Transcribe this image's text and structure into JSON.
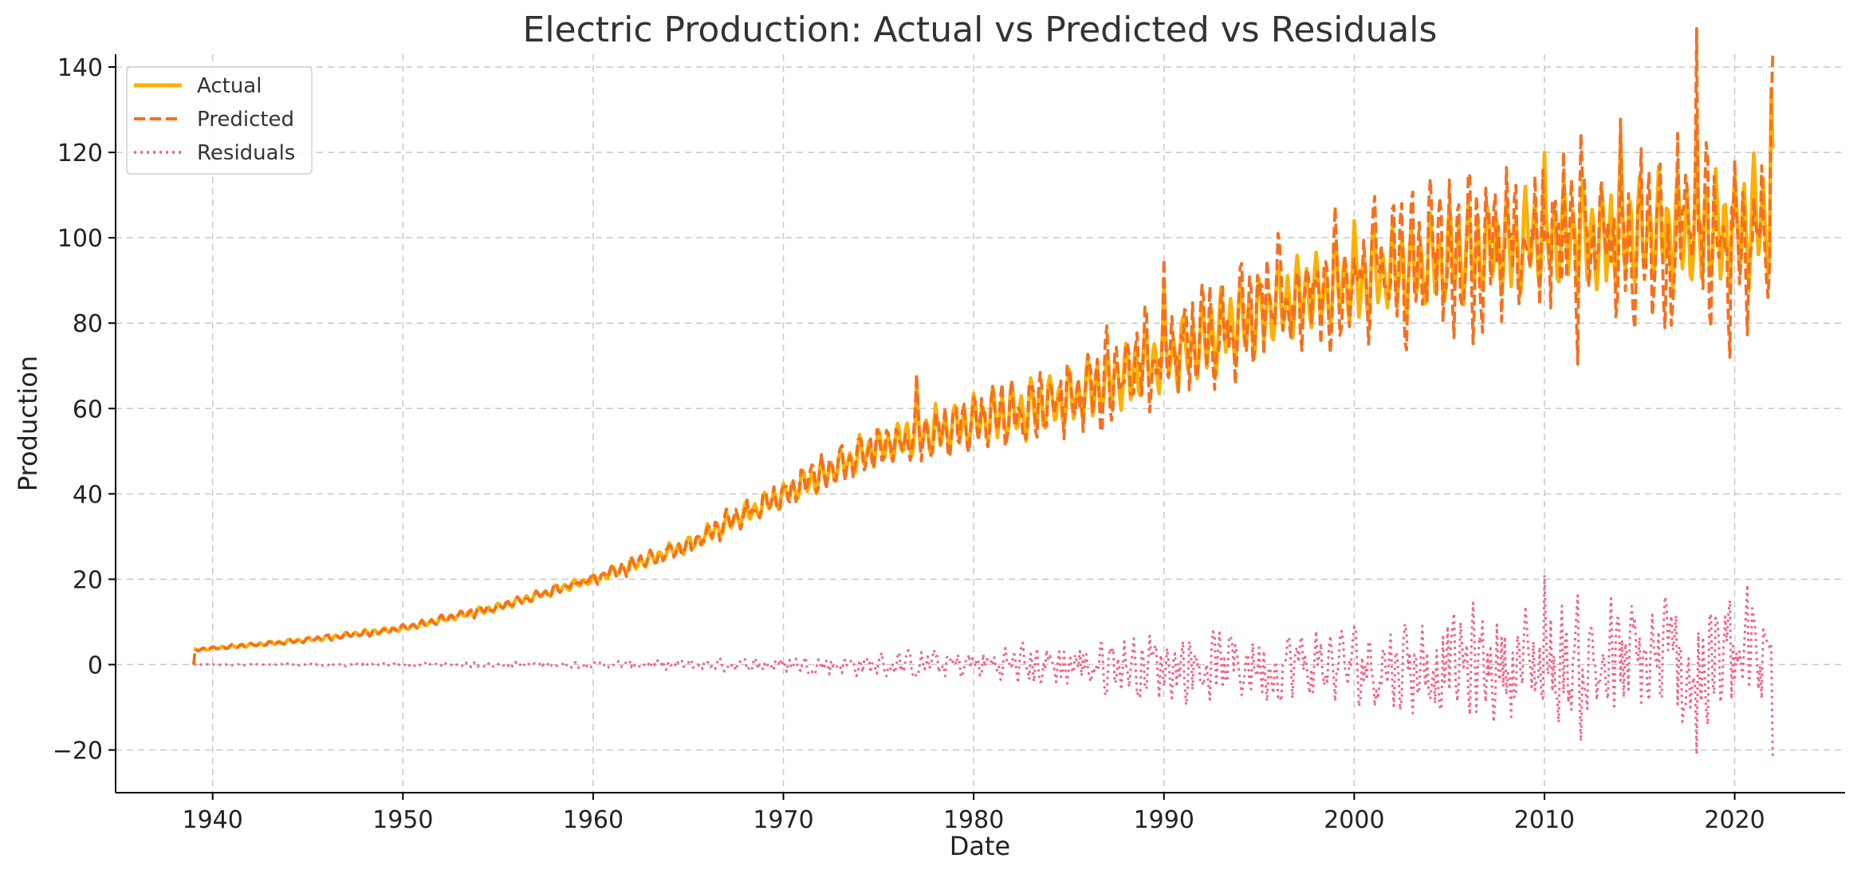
{
  "chart_data": {
    "type": "line",
    "title": "Electric Production: Actual vs Predicted vs Residuals",
    "xlabel": "Date",
    "ylabel": "Production",
    "xlim": [
      1934.9,
      2025.8
    ],
    "ylim": [
      -30,
      143
    ],
    "x_ticks": [
      1940,
      1950,
      1960,
      1970,
      1980,
      1990,
      2000,
      2010,
      2020
    ],
    "y_ticks": [
      -20,
      0,
      20,
      40,
      60,
      80,
      100,
      120,
      140
    ],
    "y_tick_labels": [
      "−20",
      "0",
      "20",
      "40",
      "60",
      "80",
      "100",
      "120",
      "140"
    ],
    "grid": true,
    "legend_position": "top-left",
    "x_start": "1939-01",
    "x_end": "2022-01",
    "frequency": "monthly",
    "series": [
      {
        "name": "Actual",
        "style": "solid",
        "color": "#FFB000",
        "trend_anchors": [
          [
            1939.0,
            3.4
          ],
          [
            1945.0,
            5.8
          ],
          [
            1950.0,
            8.5
          ],
          [
            1955.0,
            13.5
          ],
          [
            1960.0,
            20.0
          ],
          [
            1965.0,
            28.0
          ],
          [
            1970.0,
            40.0
          ],
          [
            1975.0,
            51.0
          ],
          [
            1980.0,
            57.0
          ],
          [
            1985.0,
            62.0
          ],
          [
            1990.0,
            72.0
          ],
          [
            1995.0,
            82.0
          ],
          [
            2000.0,
            90.0
          ],
          [
            2005.0,
            95.0
          ],
          [
            2010.0,
            100.0
          ],
          [
            2015.0,
            101.0
          ],
          [
            2020.0,
            102.0
          ],
          [
            2022.0,
            105.0
          ]
        ],
        "seasonal_amplitude_anchors": [
          [
            1939.0,
            0.3
          ],
          [
            1960.0,
            1.2
          ],
          [
            1970.0,
            3.0
          ],
          [
            1975.0,
            5.0
          ],
          [
            1990.0,
            9.0
          ],
          [
            2000.0,
            11.0
          ],
          [
            2010.0,
            13.0
          ],
          [
            2022.0,
            15.0
          ]
        ],
        "peak_values": [
          [
            1977.0,
            66.0
          ],
          [
            1990.0,
            90.0
          ],
          [
            2000.0,
            104.0
          ],
          [
            2010.0,
            120.0
          ],
          [
            2014.0,
            124.0
          ],
          [
            2018.0,
            128.0
          ],
          [
            2022.0,
            135.0
          ]
        ]
      },
      {
        "name": "Predicted",
        "style": "dashed",
        "color": "#F5701E",
        "tracks": "Actual"
      },
      {
        "name": "Residuals",
        "style": "dotted",
        "color": "#F06585",
        "centered_on": 0,
        "amplitude_anchors": [
          [
            1939.0,
            0.1
          ],
          [
            1960.0,
            0.8
          ],
          [
            1970.0,
            2.0
          ],
          [
            1980.0,
            4.0
          ],
          [
            1990.0,
            8.0
          ],
          [
            2000.0,
            10.0
          ],
          [
            2010.0,
            15.0
          ],
          [
            2022.0,
            20.0
          ]
        ],
        "extremes": [
          [
            2010.0,
            21.0
          ],
          [
            2018.0,
            -21.0
          ],
          [
            2022.0,
            -22.0
          ]
        ]
      }
    ]
  }
}
